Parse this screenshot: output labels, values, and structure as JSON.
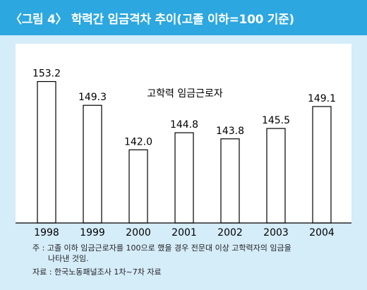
{
  "header": {
    "title": "〈그림 4〉 학력간 임금격차 추이(고졸 이하=100 기준)"
  },
  "chart_data": {
    "type": "bar",
    "title": "〈그림 4〉 학력간 임금격차 추이(고졸 이하=100 기준)",
    "categories": [
      "1998",
      "1999",
      "2000",
      "2001",
      "2002",
      "2003",
      "2004"
    ],
    "series": [
      {
        "name": "고학력 임금근로자",
        "values": [
          153.2,
          149.3,
          142.0,
          144.8,
          143.8,
          145.5,
          149.1
        ]
      }
    ],
    "value_labels": [
      "153.2",
      "149.3",
      "142.0",
      "144.8",
      "143.8",
      "145.5",
      "149.1"
    ],
    "ylim": [
      130,
      155
    ],
    "grid": false,
    "legend": "top-center",
    "colors": {
      "bar_fill": "#ffffff",
      "bar_stroke": "#000000",
      "frame": "#d5ecf9",
      "title_bg": "#2ca7e0"
    }
  },
  "notes": {
    "note_line1": "주 : 고졸 이하 임금근로자를 100으로 했을 경우 전문대 이상 고학력자의 임금을",
    "note_line2": "나타낸 것임.",
    "source": "자료 : 한국노동패널조사 1차~7차 자료"
  }
}
